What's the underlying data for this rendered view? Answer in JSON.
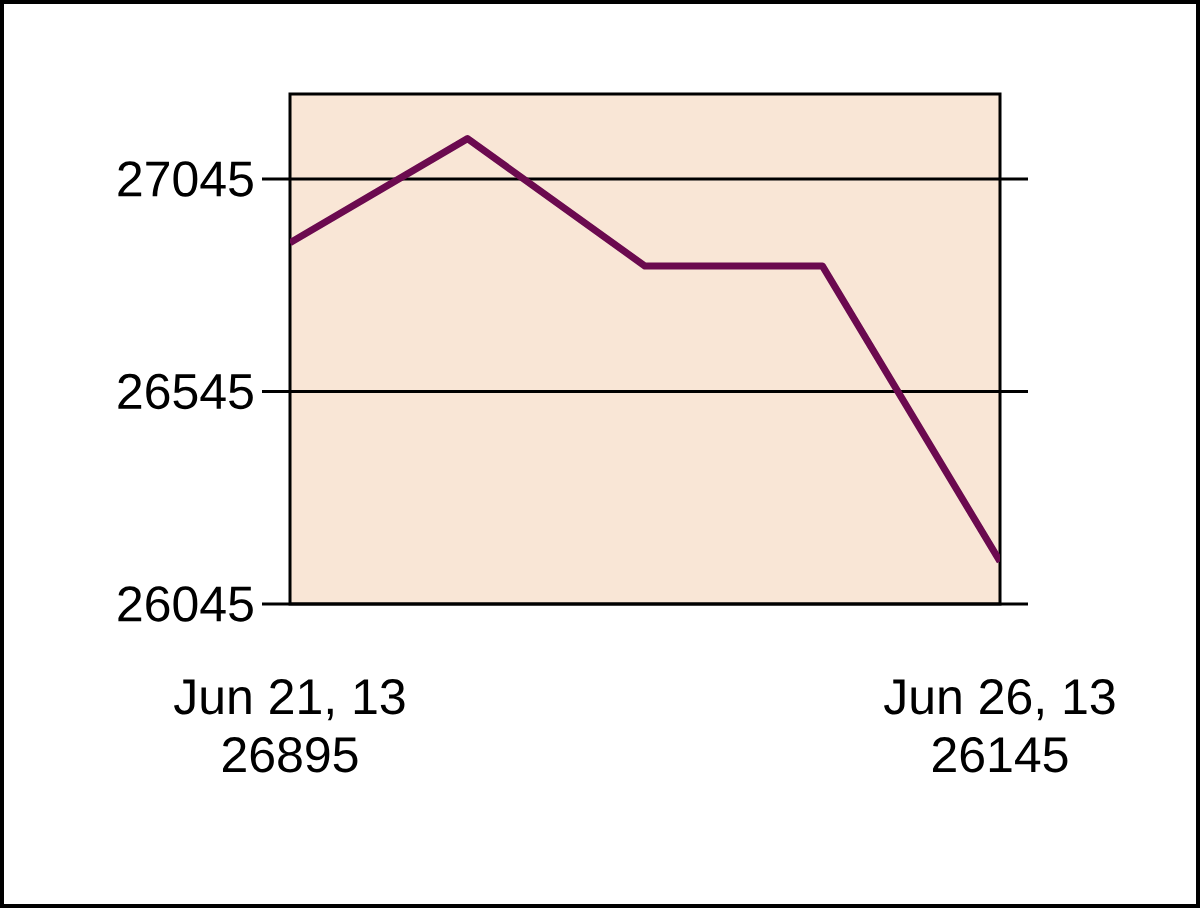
{
  "chart_data": {
    "type": "line",
    "categories": [
      "Jun 21, 13",
      null,
      null,
      null,
      "Jun 26, 13"
    ],
    "values": [
      26895,
      27140,
      26840,
      26840,
      26145
    ],
    "value_labels": [
      "26895",
      null,
      null,
      null,
      "26145"
    ],
    "color": "#6b0a4f",
    "ylim": [
      26045,
      27245
    ],
    "yticks": [
      26045,
      26545,
      27045
    ],
    "grid": "y"
  }
}
